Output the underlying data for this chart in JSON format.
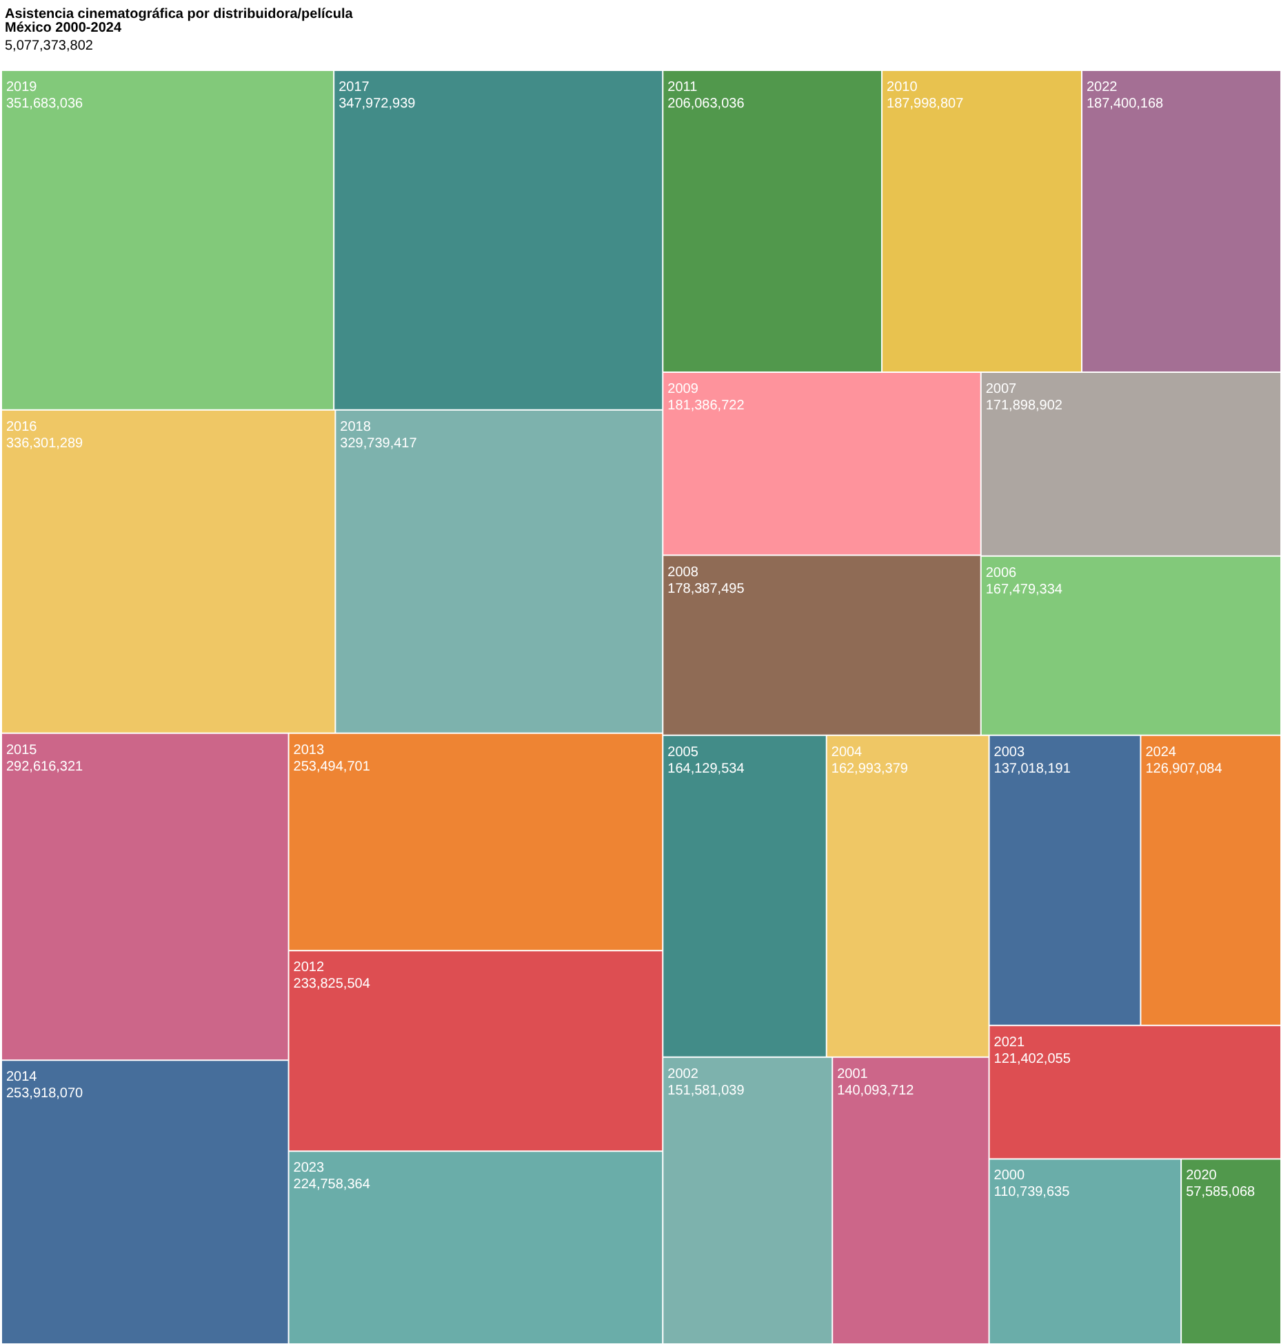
{
  "chart_data": {
    "type": "other",
    "title": "Asistencia cinematográfica por distribuidora/película",
    "subtitle": "México 2000-2024",
    "annotations": [
      "5,077,373,802"
    ],
    "categories": [
      "2019",
      "2017",
      "2016",
      "2018",
      "2015",
      "2014",
      "2013",
      "2012",
      "2023",
      "2011",
      "2010",
      "2022",
      "2009",
      "2008",
      "2007",
      "2006",
      "2005",
      "2004",
      "2002",
      "2001",
      "2003",
      "2024",
      "2021",
      "2000",
      "2020"
    ],
    "values": [
      351683036,
      347972939,
      336301289,
      329739417,
      292616321,
      253918070,
      253494701,
      233825504,
      224758364,
      206063036,
      187998807,
      187400168,
      181386722,
      178387495,
      171898902,
      167479334,
      164129534,
      162993379,
      151581039,
      140093712,
      137018191,
      126907084,
      121402055,
      110739635,
      57585068
    ],
    "value_labels": [
      "351,683,036",
      "347,972,939",
      "336,301,289",
      "329,739,417",
      "292,616,321",
      "253,918,070",
      "253,494,701",
      "233,825,504",
      "224,758,364",
      "206,063,036",
      "187,998,807",
      "187,400,168",
      "181,386,722",
      "178,387,495",
      "171,898,902",
      "167,479,334",
      "164,129,534",
      "162,993,379",
      "151,581,039",
      "140,093,712",
      "137,018,191",
      "126,907,084",
      "121,402,055",
      "110,739,635",
      "57,585,068"
    ],
    "colors": [
      "#82c97a",
      "#428c88",
      "#efc765",
      "#7db2ad",
      "#cc6689",
      "#466e9b",
      "#ee8433",
      "#dd4e52",
      "#6aada9",
      "#51984c",
      "#e8c24f",
      "#a46f94",
      "#fe939c",
      "#8f6b55",
      "#ada6a1",
      "#82c97a",
      "#428c88",
      "#efc765",
      "#7db2ad",
      "#cc6689",
      "#466e9b",
      "#ee8433",
      "#dd4e52",
      "#6aada9",
      "#51984c"
    ]
  }
}
